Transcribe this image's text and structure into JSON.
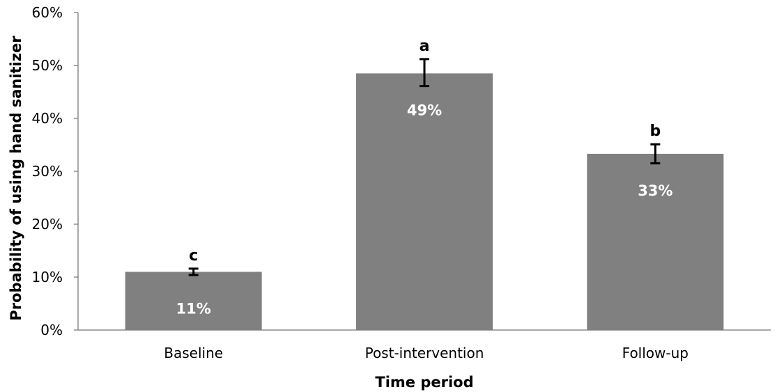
{
  "chart_data": {
    "type": "bar",
    "title": "",
    "xlabel": "Time period",
    "ylabel": "Probability of using hand sanitizer",
    "categories": [
      "Baseline",
      "Post-intervention",
      "Follow-up"
    ],
    "values": [
      11,
      48.5,
      33.3
    ],
    "data_labels": [
      "11%",
      "49%",
      "33%"
    ],
    "error_bars": [
      {
        "low": 10.4,
        "high": 11.6
      },
      {
        "low": 46.1,
        "high": 51.2
      },
      {
        "low": 31.5,
        "high": 35.1
      }
    ],
    "significance_letters": [
      "c",
      "a",
      "b"
    ],
    "yticks": [
      "0%",
      "10%",
      "20%",
      "30%",
      "40%",
      "50%",
      "60%"
    ],
    "ylim": [
      0,
      60
    ],
    "grid": false,
    "legend": "none",
    "bar_color": "#808080"
  }
}
